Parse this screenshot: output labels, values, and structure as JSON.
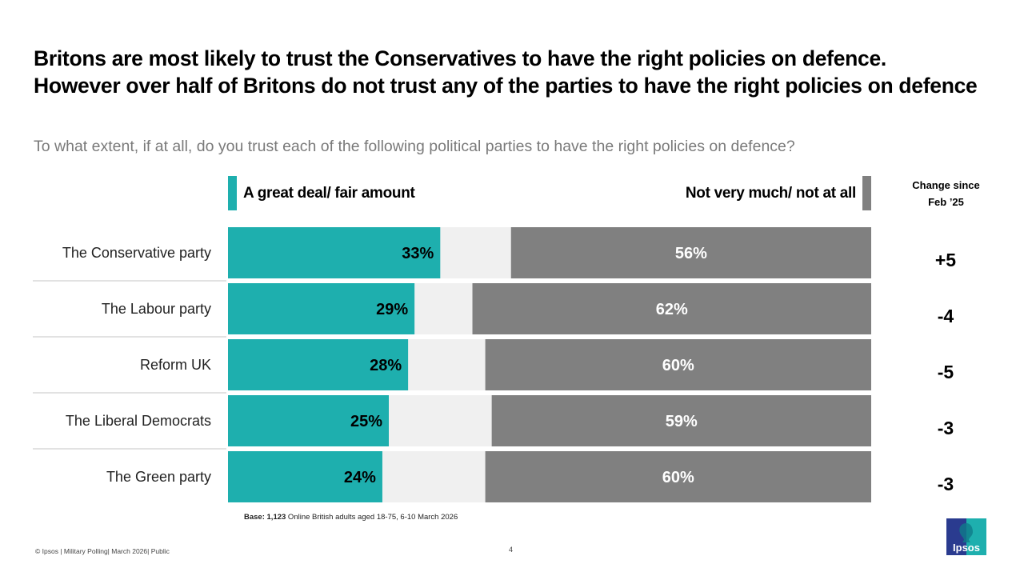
{
  "title": "Britons are most likely to trust the Conservatives to have the right policies on defence. However over half of Britons do not trust any of the parties to have the right policies on defence",
  "subtitle": "To what extent, if at all, do you trust each of the following political parties to have the right policies on defence?",
  "legend": {
    "positive": "A great deal/ fair amount",
    "negative": "Not very much/ not at all"
  },
  "change_header": {
    "line1": "Change since",
    "line2": "Feb ’25"
  },
  "colors": {
    "positive": "#1eafae",
    "negative": "#808080",
    "remainder": "#f0f0f0",
    "divider": "#d9d9d9"
  },
  "chart_data": {
    "type": "bar",
    "orientation": "horizontal-diverging-stacked",
    "title": "To what extent, if at all, do you trust each of the following political parties to have the right policies on defence?",
    "categories": [
      "The Conservative party",
      "The Labour party",
      "Reform UK",
      "The Liberal Democrats",
      "The Green party"
    ],
    "series": [
      {
        "name": "A great deal/ fair amount",
        "values": [
          33,
          29,
          28,
          25,
          24
        ],
        "labels": [
          "33%",
          "29%",
          "28%",
          "25%",
          "24%"
        ],
        "color": "#1eafae"
      },
      {
        "name": "Not very much/ not at all",
        "values": [
          56,
          62,
          60,
          59,
          60
        ],
        "labels": [
          "56%",
          "62%",
          "60%",
          "59%",
          "60%"
        ],
        "color": "#808080"
      }
    ],
    "change_since_feb25": [
      "+5",
      "-4",
      "-5",
      "-3",
      "-3"
    ],
    "xlim": [
      0,
      100
    ],
    "unit": "%",
    "legend": "top"
  },
  "base_note": {
    "label": "Base: ",
    "count": "1,123",
    "text": " Online British adults aged 18-75, 6-10 March 2026"
  },
  "footer": "© Ipsos | Military Polling| March 2026| Public",
  "page_number": "4",
  "logo_text": "Ipsos"
}
